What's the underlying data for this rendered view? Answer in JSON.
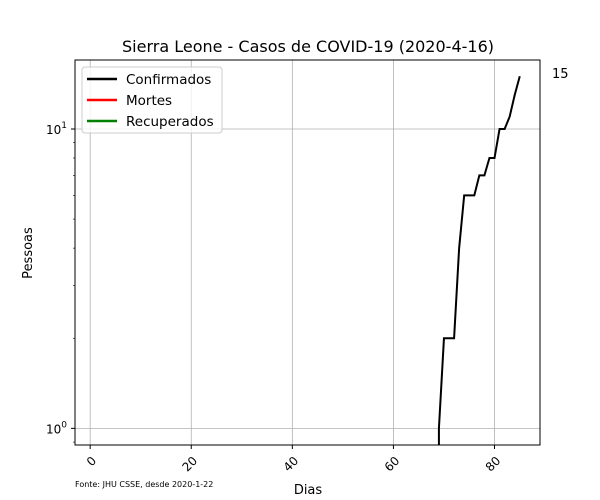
{
  "chart_data": {
    "type": "line",
    "title": "Sierra Leone - Casos de COVID-19 (2020-4-16)",
    "xlabel": "Dias",
    "ylabel": "Pessoas",
    "yscale": "log",
    "xlim": [
      -3,
      89
    ],
    "ylim": [
      0.88,
      17
    ],
    "xticks": [
      0,
      20,
      40,
      60,
      80
    ],
    "xtick_labels": [
      "0",
      "20",
      "40",
      "60",
      "80"
    ],
    "yticks": [
      1,
      10
    ],
    "ytick_labels": [
      "10^0",
      "10^1"
    ],
    "grid": true,
    "legend_position": "top-left",
    "last_value_label": "15",
    "source_note": "Fonte: JHU CSSE, desde 2020-1-22",
    "series": [
      {
        "name": "Confirmados",
        "color": "#000000",
        "x": [
          69,
          70,
          71,
          72,
          73,
          74,
          75,
          76,
          77,
          78,
          79,
          80,
          81,
          82,
          83,
          84,
          85
        ],
        "y": [
          1,
          2,
          2,
          2,
          4,
          6,
          6,
          6,
          7,
          7,
          8,
          8,
          10,
          10,
          11,
          13,
          15
        ]
      },
      {
        "name": "Mortes",
        "color": "#ff0000",
        "x": [],
        "y": []
      },
      {
        "name": "Recuperados",
        "color": "#008000",
        "x": [],
        "y": []
      }
    ]
  }
}
